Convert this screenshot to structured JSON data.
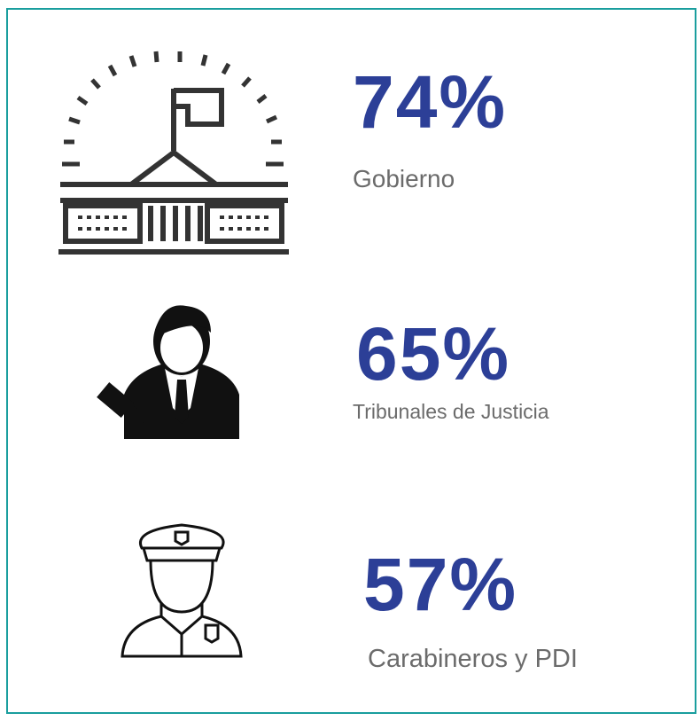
{
  "items": [
    {
      "value": "74%",
      "label": "Gobierno"
    },
    {
      "value": "65%",
      "label": "Tribunales de Justicia"
    },
    {
      "value": "57%",
      "label": "Carabineros y PDI"
    }
  ]
}
